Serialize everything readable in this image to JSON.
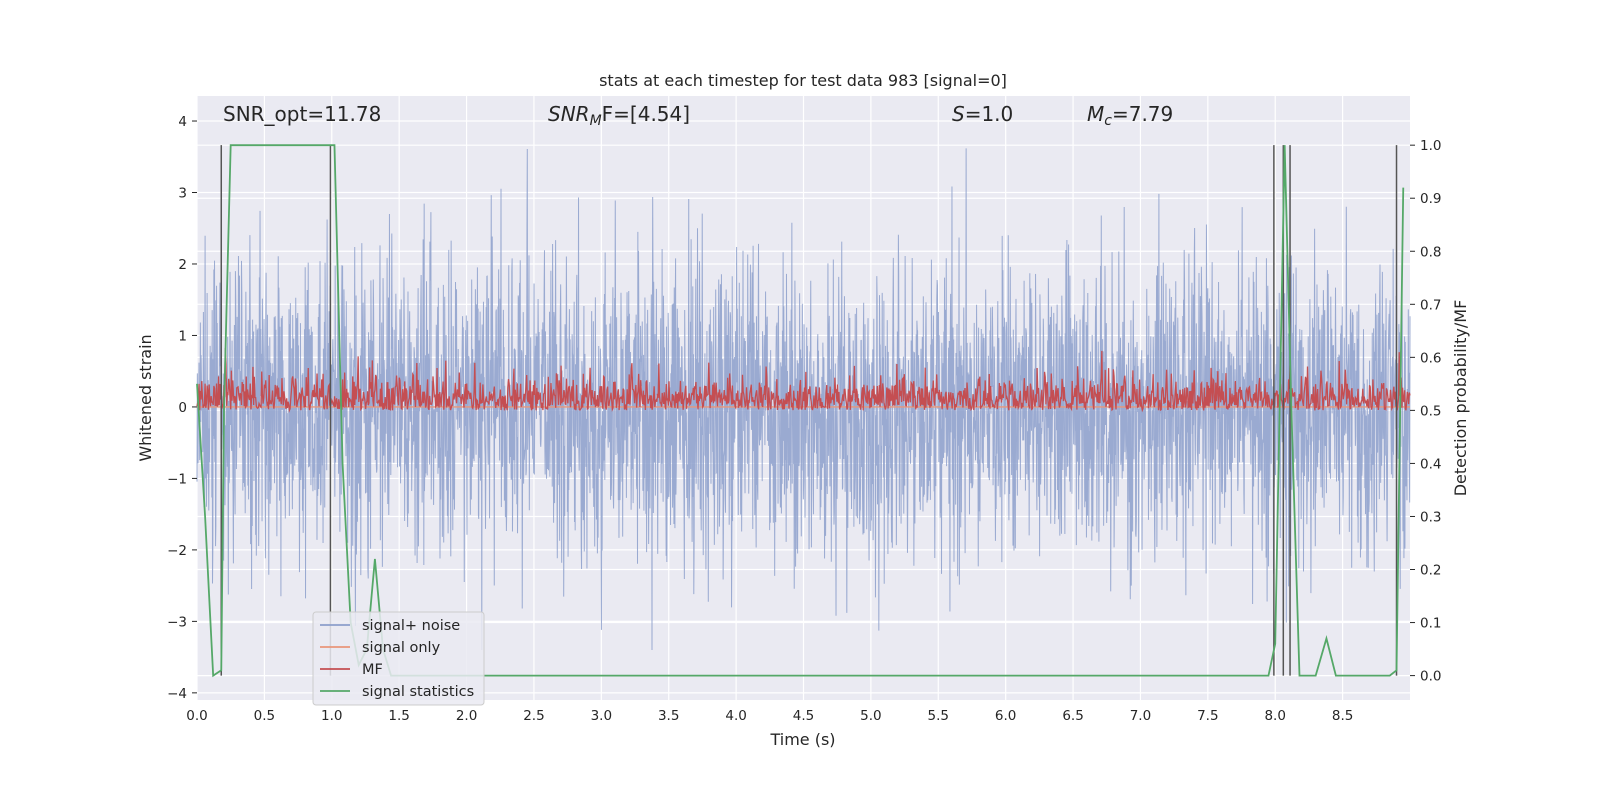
{
  "chart_data": {
    "type": "line",
    "title": "stats at each timestep for test data 983 [signal=0]",
    "xlabel": "Time (s)",
    "ylabel": "Whitened strain",
    "y2label": "Detection probability/MF",
    "xlim": [
      0.0,
      9.0
    ],
    "ylim": [
      -4.1,
      4.35
    ],
    "y2lim": [
      -0.046,
      1.0927
    ],
    "grid": true,
    "legend_position": "lower-left",
    "xticks": [
      "0.0",
      "0.5",
      "1.0",
      "1.5",
      "2.0",
      "2.5",
      "3.0",
      "3.5",
      "4.0",
      "4.5",
      "5.0",
      "5.5",
      "6.0",
      "6.5",
      "7.0",
      "7.5",
      "8.0",
      "8.5"
    ],
    "yticks": [
      "−4",
      "−3",
      "−2",
      "−1",
      "0",
      "1",
      "2",
      "3",
      "4"
    ],
    "y2ticks": [
      "0.0",
      "0.1",
      "0.2",
      "0.3",
      "0.4",
      "0.5",
      "0.6",
      "0.7",
      "0.8",
      "0.9",
      "1.0"
    ],
    "annotations": [
      {
        "base": "SNR_opt=11.78",
        "sub": "",
        "rest": ""
      },
      {
        "base": "SNR",
        "sub": "M",
        "rest": "F=[4.54]"
      },
      {
        "base": "S",
        "sub": "",
        "rest": "=1.0"
      },
      {
        "base": "M",
        "sub": "c",
        "rest": "=7.79"
      }
    ],
    "series": [
      {
        "name": "signal+ noise",
        "axis": "left",
        "color": "#8c9fcb",
        "description": "whitened noise, approx. unit variance, peaks to about ±3.5",
        "amplitude_range": [
          -3.4,
          4.0
        ]
      },
      {
        "name": "signal only",
        "axis": "left",
        "color": "#e9967a",
        "x": [
          0.0,
          9.0
        ],
        "y": [
          0.0,
          0.0
        ]
      },
      {
        "name": "MF",
        "axis": "right",
        "color": "#c44e52",
        "description": "matched-filter output fluctuating about 0.52",
        "amplitude_range": [
          0.5,
          0.62
        ]
      },
      {
        "name": "signal statistics",
        "axis": "right",
        "color": "#55a868",
        "x": [
          0.0,
          0.06,
          0.12,
          0.18,
          0.2,
          0.25,
          0.3,
          0.5,
          0.75,
          0.98,
          1.02,
          1.08,
          1.14,
          1.2,
          1.26,
          1.32,
          1.38,
          1.44,
          1.5,
          2.0,
          3.0,
          4.0,
          5.0,
          6.0,
          7.0,
          7.95,
          8.0,
          8.04,
          8.07,
          8.12,
          8.18,
          8.2,
          8.3,
          8.38,
          8.45,
          8.55,
          8.7,
          8.85,
          8.9,
          8.95
        ],
        "y": [
          0.55,
          0.3,
          0.0,
          0.01,
          0.5,
          1.0,
          1.0,
          1.0,
          1.0,
          1.0,
          1.0,
          0.4,
          0.1,
          0.02,
          0.05,
          0.22,
          0.05,
          0.0,
          0.0,
          0.0,
          0.0,
          0.0,
          0.0,
          0.0,
          0.0,
          0.0,
          0.06,
          0.6,
          1.0,
          0.5,
          0.0,
          0.0,
          0.0,
          0.07,
          0.0,
          0.0,
          0.0,
          0.0,
          0.01,
          0.92
        ]
      }
    ],
    "vertical_lines_x": [
      0.18,
      0.99,
      7.99,
      8.06,
      8.11,
      8.9
    ]
  }
}
